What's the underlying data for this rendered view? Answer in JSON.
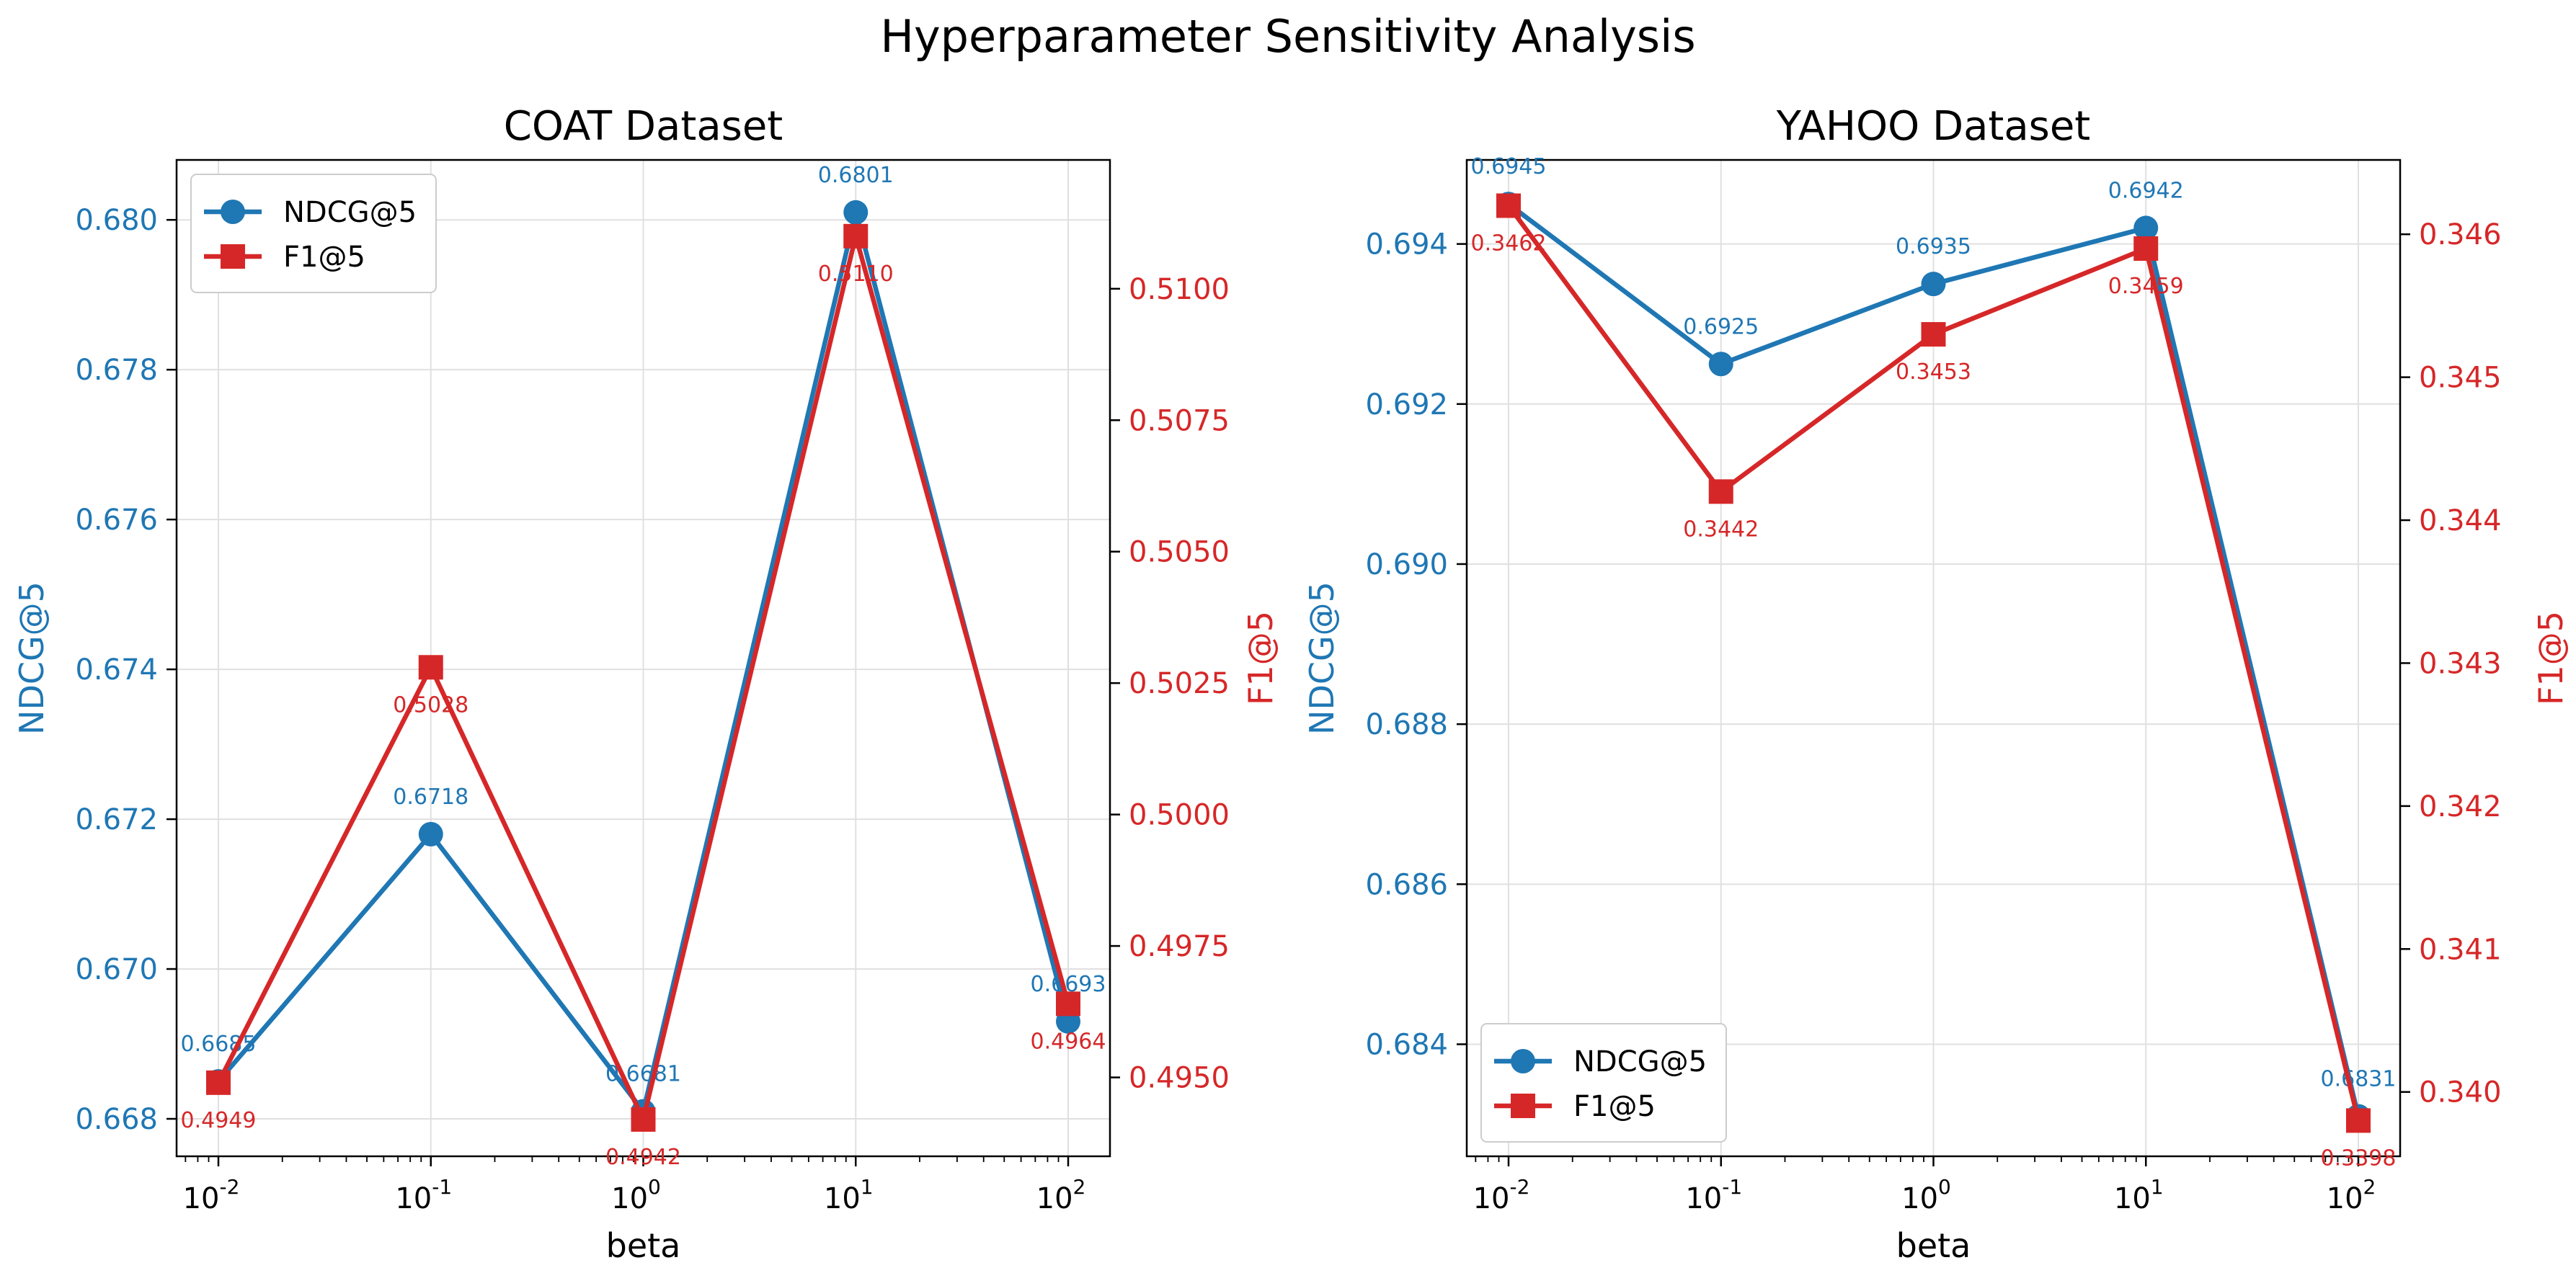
{
  "title": "Hyperparameter Sensitivity Analysis",
  "colors": {
    "ndcg": "#1f77b4",
    "f1": "#d62728",
    "axis": "#000000",
    "grid": "#e0e0e0"
  },
  "chart_data": [
    {
      "type": "line",
      "title": "COAT Dataset",
      "xlabel": "beta",
      "ylabel_left": "NDCG@5",
      "ylabel_right": "F1@5",
      "x_scale": "log",
      "x": [
        0.01,
        0.1,
        1,
        10,
        100
      ],
      "x_tick_exponents": [
        "-2",
        "-1",
        "0",
        "1",
        "2"
      ],
      "ylim_left": [
        0.6675,
        0.6808
      ],
      "ylim_right": [
        0.4935,
        0.51245
      ],
      "yticks_left": [
        "0.668",
        "0.670",
        "0.672",
        "0.674",
        "0.676",
        "0.678",
        "0.680"
      ],
      "yticks_right": [
        "0.4950",
        "0.4975",
        "0.5000",
        "0.5025",
        "0.5050",
        "0.5075",
        "0.5100"
      ],
      "grid": true,
      "legend_placement": "upper-left",
      "series": [
        {
          "name": "NDCG@5",
          "axis": "left",
          "marker": "circle",
          "values": [
            0.6685,
            0.6718,
            0.6681,
            0.6801,
            0.6693
          ],
          "labels": [
            "0.6685",
            "0.6718",
            "0.6681",
            "0.6801",
            "0.6693"
          ]
        },
        {
          "name": "F1@5",
          "axis": "right",
          "marker": "square",
          "values": [
            0.4949,
            0.5028,
            0.4942,
            0.511,
            0.4964
          ],
          "labels": [
            "0.4949",
            "0.5028",
            "0.4942",
            "0.5110",
            "0.4964"
          ]
        }
      ]
    },
    {
      "type": "line",
      "title": "YAHOO Dataset",
      "xlabel": "beta",
      "ylabel_left": "NDCG@5",
      "ylabel_right": "F1@5",
      "x_scale": "log",
      "x": [
        0.01,
        0.1,
        1,
        10,
        100
      ],
      "x_tick_exponents": [
        "-2",
        "-1",
        "0",
        "1",
        "2"
      ],
      "ylim_left": [
        0.6826,
        0.69505
      ],
      "ylim_right": [
        0.33955,
        0.34652
      ],
      "yticks_left": [
        "0.684",
        "0.686",
        "0.688",
        "0.690",
        "0.692",
        "0.694"
      ],
      "yticks_right": [
        "0.340",
        "0.341",
        "0.342",
        "0.343",
        "0.344",
        "0.345",
        "0.346"
      ],
      "grid": true,
      "legend_placement": "lower-left",
      "series": [
        {
          "name": "NDCG@5",
          "axis": "left",
          "marker": "circle",
          "values": [
            0.6945,
            0.6925,
            0.6935,
            0.6942,
            0.6831
          ],
          "labels": [
            "0.6945",
            "0.6925",
            "0.6935",
            "0.6942",
            "0.6831"
          ]
        },
        {
          "name": "F1@5",
          "axis": "right",
          "marker": "square",
          "values": [
            0.3462,
            0.3442,
            0.3453,
            0.3459,
            0.3398
          ],
          "labels": [
            "0.3462",
            "0.3442",
            "0.3453",
            "0.3459",
            "0.3398"
          ]
        }
      ]
    }
  ]
}
